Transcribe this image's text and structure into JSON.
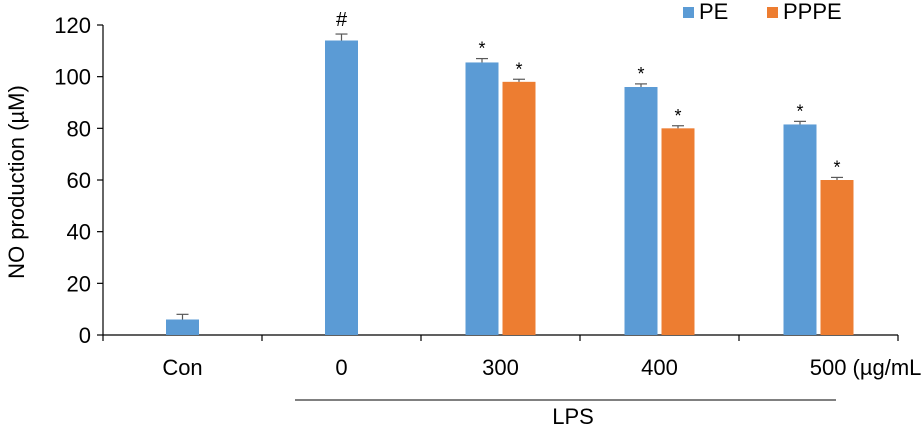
{
  "chart_data": {
    "type": "bar",
    "title": "",
    "ylabel": "NO production (µM)",
    "xlabel": "",
    "ylim": [
      0,
      120
    ],
    "yticks": [
      0,
      20,
      40,
      60,
      80,
      100,
      120
    ],
    "categories": [
      "Con",
      "0",
      "300",
      "400",
      "500"
    ],
    "unit_label": "(µg/mL)",
    "group_label": "LPS",
    "legend_position": "top-right",
    "grid": false,
    "series": [
      {
        "name": "PE",
        "color": "#5b9bd5",
        "values": [
          6,
          114,
          105.5,
          96,
          81.5
        ],
        "errors": [
          2,
          2.5,
          1.5,
          1.2,
          1.2
        ],
        "marks": [
          "",
          "#",
          "*",
          "*",
          "*"
        ]
      },
      {
        "name": "PPPE",
        "color": "#ed7d31",
        "values": [
          null,
          null,
          98,
          80,
          60
        ],
        "errors": [
          null,
          null,
          1,
          1,
          1
        ],
        "marks": [
          "",
          "",
          "*",
          "*",
          "*"
        ]
      }
    ]
  }
}
